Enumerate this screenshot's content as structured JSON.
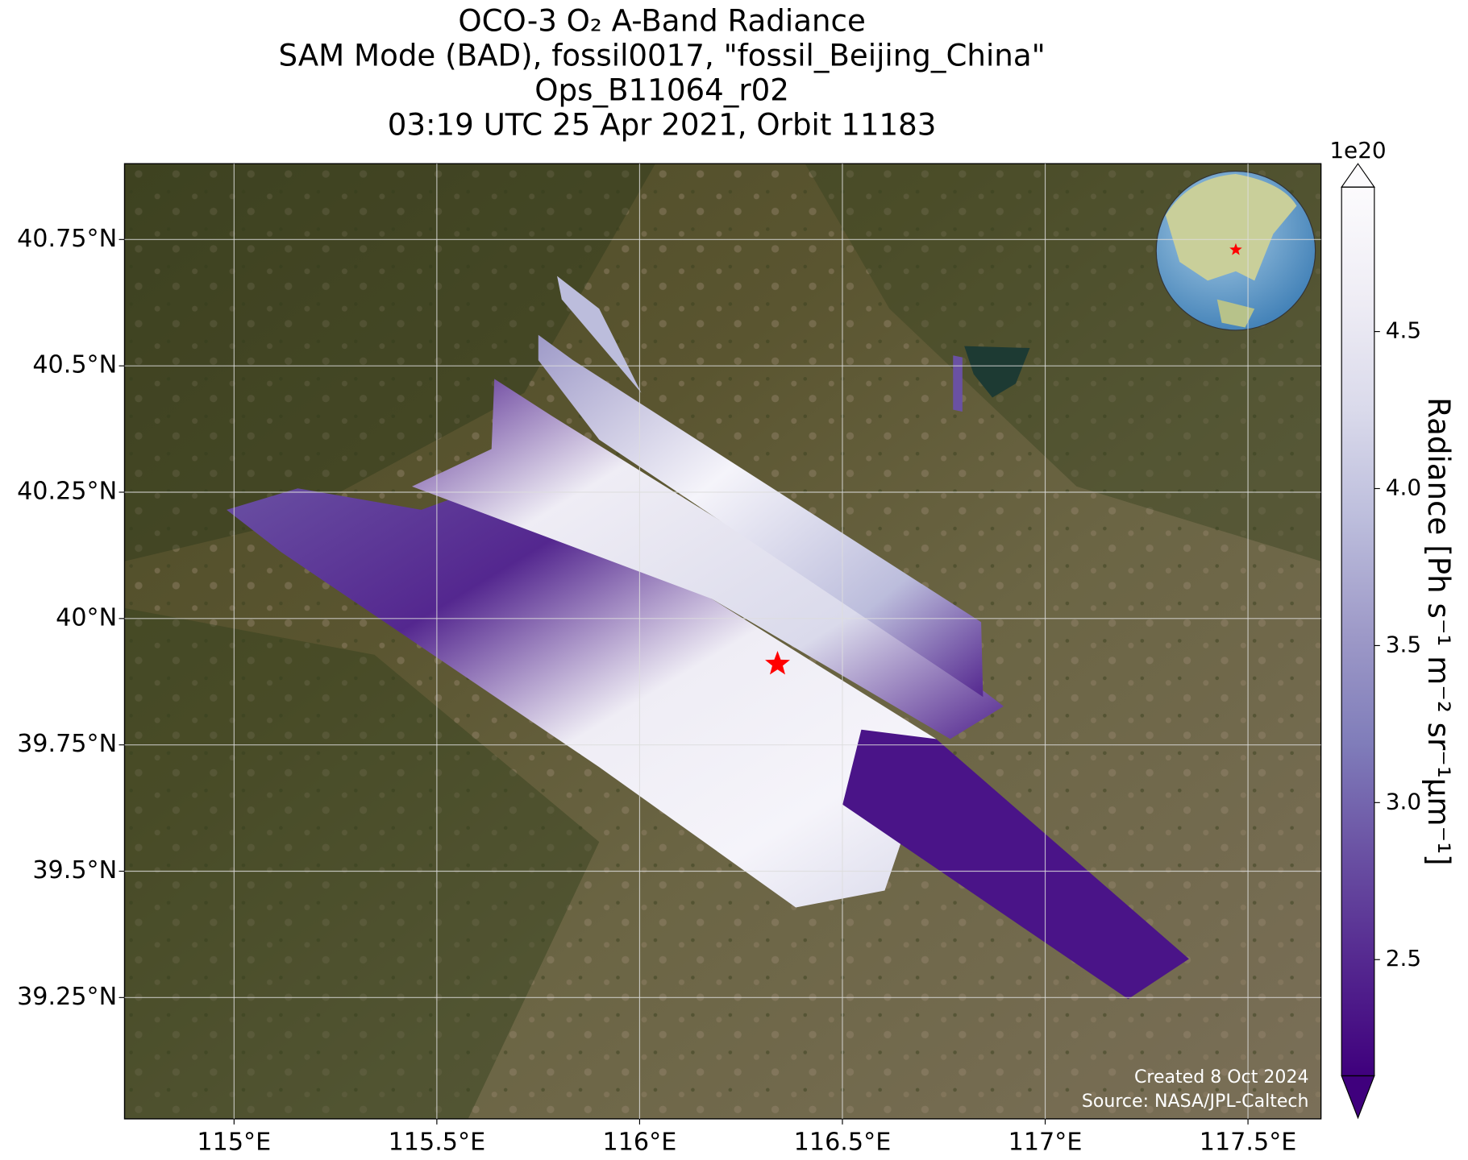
{
  "title": [
    "OCO-3 O₂ A-Band Radiance",
    "SAM Mode (BAD), fossil0017, \"fossil_Beijing_China\"",
    "Ops_B11064_r02",
    "03:19 UTC 25 Apr 2021, Orbit 11183"
  ],
  "map": {
    "xlim": [
      114.73,
      117.68
    ],
    "ylim": [
      39.01,
      40.9
    ],
    "grid": true,
    "xticks": [
      {
        "value": 115,
        "label": "115°E"
      },
      {
        "value": 115.5,
        "label": "115.5°E"
      },
      {
        "value": 116,
        "label": "116°E"
      },
      {
        "value": 116.5,
        "label": "116.5°E"
      },
      {
        "value": 117,
        "label": "117°E"
      },
      {
        "value": 117.5,
        "label": "117.5°E"
      }
    ],
    "yticks": [
      {
        "value": 39.25,
        "label": "39.25°N"
      },
      {
        "value": 39.5,
        "label": "39.5°N"
      },
      {
        "value": 39.75,
        "label": "39.75°N"
      },
      {
        "value": 40,
        "label": "40°N"
      },
      {
        "value": 40.25,
        "label": "40.25°N"
      },
      {
        "value": 40.5,
        "label": "40.5°N"
      },
      {
        "value": 40.75,
        "label": "40.75°N"
      }
    ],
    "site": {
      "lon": 116.34,
      "lat": 39.91,
      "color": "#ff0000"
    }
  },
  "colorbar": {
    "label": "Radiance [Ph s⁻¹ m⁻² sr⁻¹μm⁻¹]",
    "offset": "1e20",
    "lim": [
      2.13,
      4.96
    ],
    "ticks": [
      2.5,
      {
        "value": 3,
        "label": "3.0"
      },
      3.5,
      {
        "value": 4,
        "label": "4.0"
      },
      4.5
    ],
    "colors": [
      "#3f007d",
      "#54278f",
      "#6a51a3",
      "#807dba",
      "#9e9ac8",
      "#bcbddc",
      "#dadaeb",
      "#efedf5",
      "#fcfbfd"
    ]
  },
  "footer": [
    "Created 8 Oct 2024",
    "Source: NASA/JPL-Caltech"
  ]
}
